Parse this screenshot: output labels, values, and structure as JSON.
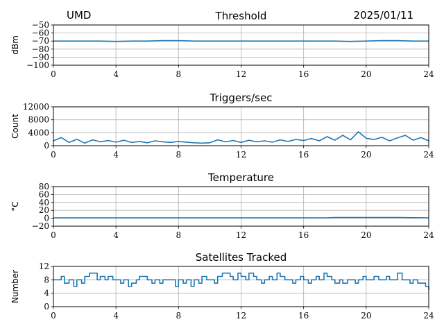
{
  "header": {
    "site": "UMD",
    "date": "2025/01/11"
  },
  "colors": {
    "series": "#1f77b4",
    "grid": "#b0b0b0",
    "axes": "#000000"
  },
  "chart_data": [
    {
      "type": "line",
      "title": "Threshold",
      "ylabel": "dBm",
      "xlim": [
        0,
        24
      ],
      "xticks": [
        0,
        4,
        8,
        12,
        16,
        20,
        24
      ],
      "xtick_labels": [
        "0",
        "4",
        "8",
        "12",
        "16",
        "20",
        "24"
      ],
      "ylim": [
        -100,
        -50
      ],
      "yticks": [
        -100,
        -90,
        -80,
        -70,
        -60,
        -50
      ],
      "ytick_labels": [
        "−100",
        "−90",
        "−80",
        "−70",
        "−60",
        "−50"
      ],
      "grid": true,
      "series": [
        {
          "x": [
            0,
            1,
            2,
            3,
            4,
            5,
            6,
            7,
            8,
            9,
            10,
            11,
            12,
            13,
            14,
            15,
            16,
            17,
            18,
            19,
            20,
            21,
            22,
            23,
            24
          ],
          "values": [
            -70,
            -70,
            -70,
            -70,
            -70.5,
            -70,
            -70,
            -69.5,
            -69.5,
            -70,
            -70,
            -70,
            -70,
            -70,
            -70,
            -70,
            -70,
            -70,
            -70,
            -70.5,
            -70,
            -69.5,
            -69.5,
            -70,
            -70
          ]
        }
      ]
    },
    {
      "type": "line",
      "title": "Triggers/sec",
      "ylabel": "Count",
      "xlim": [
        0,
        24
      ],
      "xticks": [
        0,
        4,
        8,
        12,
        16,
        20,
        24
      ],
      "xtick_labels": [
        "0",
        "4",
        "8",
        "12",
        "16",
        "20",
        "24"
      ],
      "ylim": [
        0,
        12000
      ],
      "yticks": [
        0,
        4000,
        8000,
        12000
      ],
      "ytick_labels": [
        "0",
        "4000",
        "8000",
        "12000"
      ],
      "grid": true,
      "series": [
        {
          "x": [
            0,
            0.5,
            1,
            1.5,
            2,
            2.5,
            3,
            3.5,
            4,
            4.5,
            5,
            5.5,
            6,
            6.5,
            7,
            7.5,
            8,
            8.5,
            9,
            9.5,
            10,
            10.5,
            11,
            11.5,
            12,
            12.5,
            13,
            13.5,
            14,
            14.5,
            15,
            15.5,
            16,
            16.5,
            17,
            17.5,
            18,
            18.5,
            19,
            19.5,
            20,
            20.5,
            21,
            21.5,
            22,
            22.5,
            23,
            23.5,
            24
          ],
          "values": [
            1500,
            2500,
            1000,
            2000,
            800,
            1800,
            1200,
            1600,
            1100,
            1700,
            1000,
            1300,
            900,
            1500,
            1200,
            1000,
            1300,
            1100,
            900,
            800,
            900,
            1800,
            1200,
            1600,
            1000,
            1700,
            1200,
            1500,
            1100,
            1800,
            1300,
            1900,
            1600,
            2200,
            1500,
            2800,
            1700,
            3200,
            1800,
            4300,
            2300,
            1900,
            2600,
            1500,
            2400,
            3200,
            1700,
            2500,
            1500
          ]
        }
      ]
    },
    {
      "type": "line",
      "title": "Temperature",
      "ylabel": "°C",
      "xlim": [
        0,
        24
      ],
      "xticks": [
        0,
        4,
        8,
        12,
        16,
        20,
        24
      ],
      "xtick_labels": [
        "0",
        "4",
        "8",
        "12",
        "16",
        "20",
        "24"
      ],
      "ylim": [
        -20,
        80
      ],
      "yticks": [
        -20,
        0,
        20,
        40,
        60,
        80
      ],
      "ytick_labels": [
        "−20",
        "0",
        "20",
        "40",
        "60",
        "80"
      ],
      "grid": true,
      "series": [
        {
          "x": [
            0,
            2,
            4,
            6,
            8,
            10,
            12,
            14,
            16,
            17.5,
            18,
            20,
            22,
            24
          ],
          "values": [
            1,
            1,
            1,
            1,
            1,
            1,
            1,
            1,
            1,
            1,
            2,
            2,
            2,
            1
          ]
        }
      ]
    },
    {
      "type": "line",
      "title": "Satellites Tracked",
      "ylabel": "Number",
      "xlim": [
        0,
        24
      ],
      "xticks": [
        0,
        4,
        8,
        12,
        16,
        20,
        24
      ],
      "xtick_labels": [
        "0",
        "4",
        "8",
        "12",
        "16",
        "20",
        "24"
      ],
      "ylim": [
        0,
        12
      ],
      "yticks": [
        0,
        4,
        8,
        12
      ],
      "ytick_labels": [
        "0",
        "4",
        "8",
        "12"
      ],
      "grid": true,
      "series": [
        {
          "step": true,
          "x": [
            0,
            0.3,
            0.5,
            0.7,
            1,
            1.3,
            1.5,
            1.8,
            2,
            2.3,
            2.5,
            2.8,
            3,
            3.3,
            3.5,
            3.8,
            4,
            4.3,
            4.5,
            4.8,
            5,
            5.3,
            5.5,
            5.8,
            6,
            6.3,
            6.5,
            6.8,
            7,
            7.3,
            7.5,
            7.8,
            8,
            8.3,
            8.5,
            8.8,
            9,
            9.3,
            9.5,
            9.8,
            10,
            10.3,
            10.5,
            10.8,
            11,
            11.3,
            11.5,
            11.8,
            12,
            12.3,
            12.5,
            12.8,
            13,
            13.3,
            13.5,
            13.8,
            14,
            14.3,
            14.5,
            14.8,
            15,
            15.3,
            15.5,
            15.8,
            16,
            16.3,
            16.5,
            16.8,
            17,
            17.3,
            17.5,
            17.8,
            18,
            18.3,
            18.5,
            18.8,
            19,
            19.3,
            19.5,
            19.8,
            20,
            20.3,
            20.5,
            20.8,
            21,
            21.3,
            21.5,
            21.8,
            22,
            22.3,
            22.5,
            22.8,
            23,
            23.3,
            23.5,
            23.8,
            24
          ],
          "values": [
            8,
            8,
            9,
            7,
            8,
            6,
            8,
            7,
            9,
            10,
            10,
            8,
            9,
            8,
            9,
            8,
            8,
            7,
            8,
            6,
            7,
            8,
            9,
            9,
            8,
            7,
            8,
            7,
            8,
            8,
            8,
            6,
            8,
            7,
            8,
            6,
            8,
            7,
            9,
            8,
            8,
            7,
            9,
            10,
            10,
            9,
            8,
            10,
            9,
            8,
            10,
            9,
            8,
            7,
            8,
            9,
            8,
            10,
            9,
            8,
            8,
            7,
            8,
            9,
            8,
            7,
            8,
            9,
            8,
            10,
            9,
            8,
            7,
            8,
            7,
            8,
            8,
            7,
            8,
            9,
            8,
            8,
            9,
            8,
            8,
            9,
            8,
            8,
            10,
            8,
            8,
            7,
            8,
            7,
            7,
            6,
            5
          ]
        }
      ]
    }
  ]
}
